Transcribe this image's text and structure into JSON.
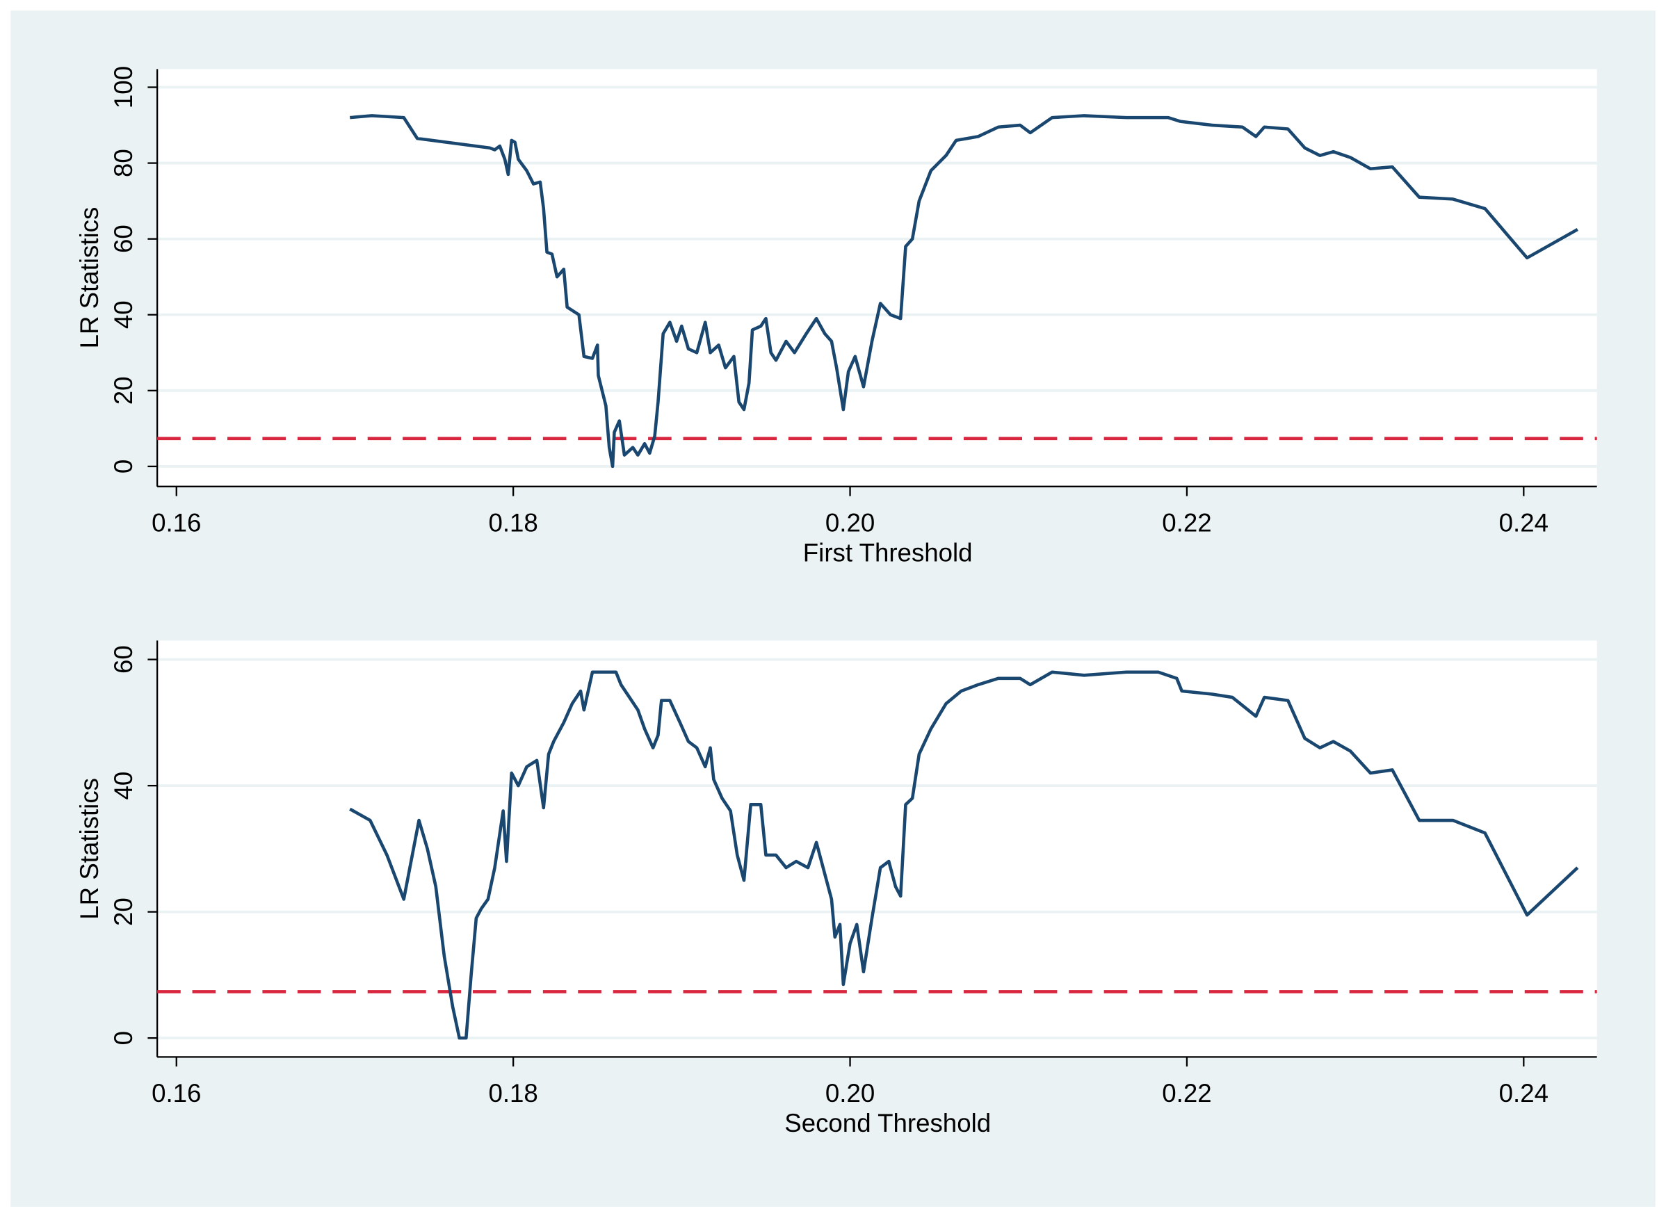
{
  "chart_data": [
    {
      "type": "line",
      "xlabel": "First Threshold",
      "ylabel": "LR Statistics",
      "x": [
        0.1703,
        0.1716,
        0.1735,
        0.1743,
        0.1786,
        0.1789,
        0.1792,
        0.1795,
        0.1797,
        0.1799,
        0.1801,
        0.1803,
        0.1808,
        0.1812,
        0.1816,
        0.1818,
        0.182,
        0.1823,
        0.1826,
        0.183,
        0.1832,
        0.1839,
        0.1842,
        0.1847,
        0.185,
        0.18505,
        0.1855,
        0.1857,
        0.1859,
        0.186,
        0.1863,
        0.1866,
        0.1871,
        0.1874,
        0.1878,
        0.1881,
        0.1884,
        0.1886,
        0.1889,
        0.1893,
        0.1897,
        0.19,
        0.1904,
        0.1909,
        0.1914,
        0.1917,
        0.1922,
        0.1926,
        0.1931,
        0.1934,
        0.1937,
        0.194,
        0.1942,
        0.1947,
        0.195,
        0.1953,
        0.1956,
        0.1962,
        0.1967,
        0.1974,
        0.198,
        0.1985,
        0.1989,
        0.1992,
        0.1996,
        0.1999,
        0.2003,
        0.2008,
        0.2013,
        0.2018,
        0.2024,
        0.203,
        0.2033,
        0.2037,
        0.2041,
        0.2048,
        0.2057,
        0.2063,
        0.2076,
        0.2088,
        0.2101,
        0.2107,
        0.212,
        0.2139,
        0.2164,
        0.2189,
        0.2196,
        0.2215,
        0.2233,
        0.2241,
        0.2246,
        0.226,
        0.227,
        0.2279,
        0.2287,
        0.2297,
        0.2309,
        0.2322,
        0.2338,
        0.2358,
        0.2377,
        0.2402,
        0.2432
      ],
      "series": [
        {
          "color": "#1a476f",
          "values": [
            92,
            92.5,
            92,
            86.5,
            84,
            83.5,
            84.5,
            81,
            77,
            86,
            85.5,
            81,
            78,
            74.5,
            75,
            68,
            56.5,
            56,
            50,
            52,
            42,
            40,
            29,
            28.5,
            32,
            24,
            16,
            5,
            0,
            9,
            12,
            3,
            5,
            3,
            6,
            3.5,
            8,
            17,
            35,
            38,
            33,
            37,
            31,
            30,
            38,
            30,
            32,
            26,
            29,
            17,
            15,
            22,
            36,
            37,
            39,
            30,
            28,
            33,
            30,
            35,
            39,
            35,
            33,
            26,
            15,
            25,
            29,
            21,
            33,
            43,
            40,
            39,
            58,
            60,
            70,
            78,
            82,
            86,
            87,
            89.5,
            90,
            88,
            92,
            92.5,
            92,
            92,
            91,
            90,
            89.5,
            87,
            89.5,
            89,
            84,
            82,
            83,
            81.5,
            78.5,
            79,
            71,
            70.5,
            68,
            55,
            62.5
          ]
        }
      ],
      "hline": {
        "value": 7.35,
        "color": "#d7263d"
      },
      "xlim": [
        0.15886,
        0.24435
      ],
      "xticks": [
        0.16,
        0.18,
        {
          "value": 0.2,
          "label": "0.20"
        },
        0.22,
        0.24
      ],
      "ylim": [
        -5.3,
        104.8
      ],
      "yticks": [
        0,
        20,
        40,
        60,
        80,
        100
      ],
      "grid": true
    },
    {
      "type": "line",
      "xlabel": "Second Threshold",
      "ylabel": "LR Statistics",
      "x": [
        0.1703,
        0.1715,
        0.1725,
        0.1735,
        0.1744,
        0.1749,
        0.1754,
        0.1759,
        0.1764,
        0.1768,
        0.1772,
        0.1775,
        0.1778,
        0.1781,
        0.1785,
        0.1789,
        0.1794,
        0.1796,
        0.1799,
        0.1803,
        0.1808,
        0.1814,
        0.1818,
        0.1821,
        0.1824,
        0.183,
        0.1835,
        0.184,
        0.1842,
        0.1847,
        0.1861,
        0.1864,
        0.1869,
        0.1874,
        0.1878,
        0.1883,
        0.1886,
        0.1888,
        0.1893,
        0.1899,
        0.1904,
        0.1909,
        0.1914,
        0.1917,
        0.1919,
        0.1924,
        0.1929,
        0.1933,
        0.1937,
        0.1941,
        0.1947,
        0.195,
        0.1956,
        0.1962,
        0.1968,
        0.1975,
        0.198,
        0.1985,
        0.1989,
        0.1991,
        0.1994,
        0.1996,
        0.2,
        0.2004,
        0.2008,
        0.2013,
        0.2018,
        0.2023,
        0.2027,
        0.203,
        0.2033,
        0.2037,
        0.2041,
        0.2048,
        0.2057,
        0.2066,
        0.2076,
        0.2088,
        0.2101,
        0.2107,
        0.212,
        0.2139,
        0.2164,
        0.2183,
        0.2194,
        0.2197,
        0.2215,
        0.2227,
        0.2241,
        0.2246,
        0.226,
        0.227,
        0.2279,
        0.2287,
        0.2297,
        0.2309,
        0.2322,
        0.2338,
        0.2358,
        0.2377,
        0.2402,
        0.2432
      ],
      "series": [
        {
          "color": "#1a476f",
          "values": [
            36.3,
            34.5,
            29,
            22,
            34.5,
            30,
            24,
            13,
            5,
            0,
            0,
            10,
            19,
            20.5,
            22,
            27,
            36,
            28,
            42,
            40,
            43,
            44,
            36.5,
            45,
            47,
            50,
            53,
            55,
            52,
            58,
            58,
            56,
            54,
            52,
            49,
            46,
            48,
            53.5,
            53.5,
            50,
            47,
            46,
            43,
            46,
            41,
            38,
            36,
            29,
            25,
            37,
            37,
            29,
            29,
            27,
            28,
            27,
            31,
            26,
            22,
            16,
            18,
            8.5,
            15,
            18,
            10.5,
            19,
            27,
            28,
            24,
            22.5,
            37,
            38,
            45,
            49,
            53,
            55,
            56,
            57,
            57,
            56,
            58,
            57.5,
            58,
            58,
            57,
            55,
            54.5,
            54,
            51,
            54,
            53.5,
            47.5,
            46,
            47,
            45.5,
            42,
            42.5,
            34.5,
            34.5,
            32.5,
            19.5,
            27
          ]
        }
      ],
      "hline": {
        "value": 7.35,
        "color": "#d7263d"
      },
      "xlim": [
        0.15886,
        0.24435
      ],
      "xticks": [
        0.16,
        0.18,
        {
          "value": 0.2,
          "label": "0.20"
        },
        0.22,
        0.24
      ],
      "ylim": [
        -3.0,
        63.0
      ],
      "yticks": [
        0,
        20,
        40,
        60
      ],
      "grid": true
    }
  ]
}
